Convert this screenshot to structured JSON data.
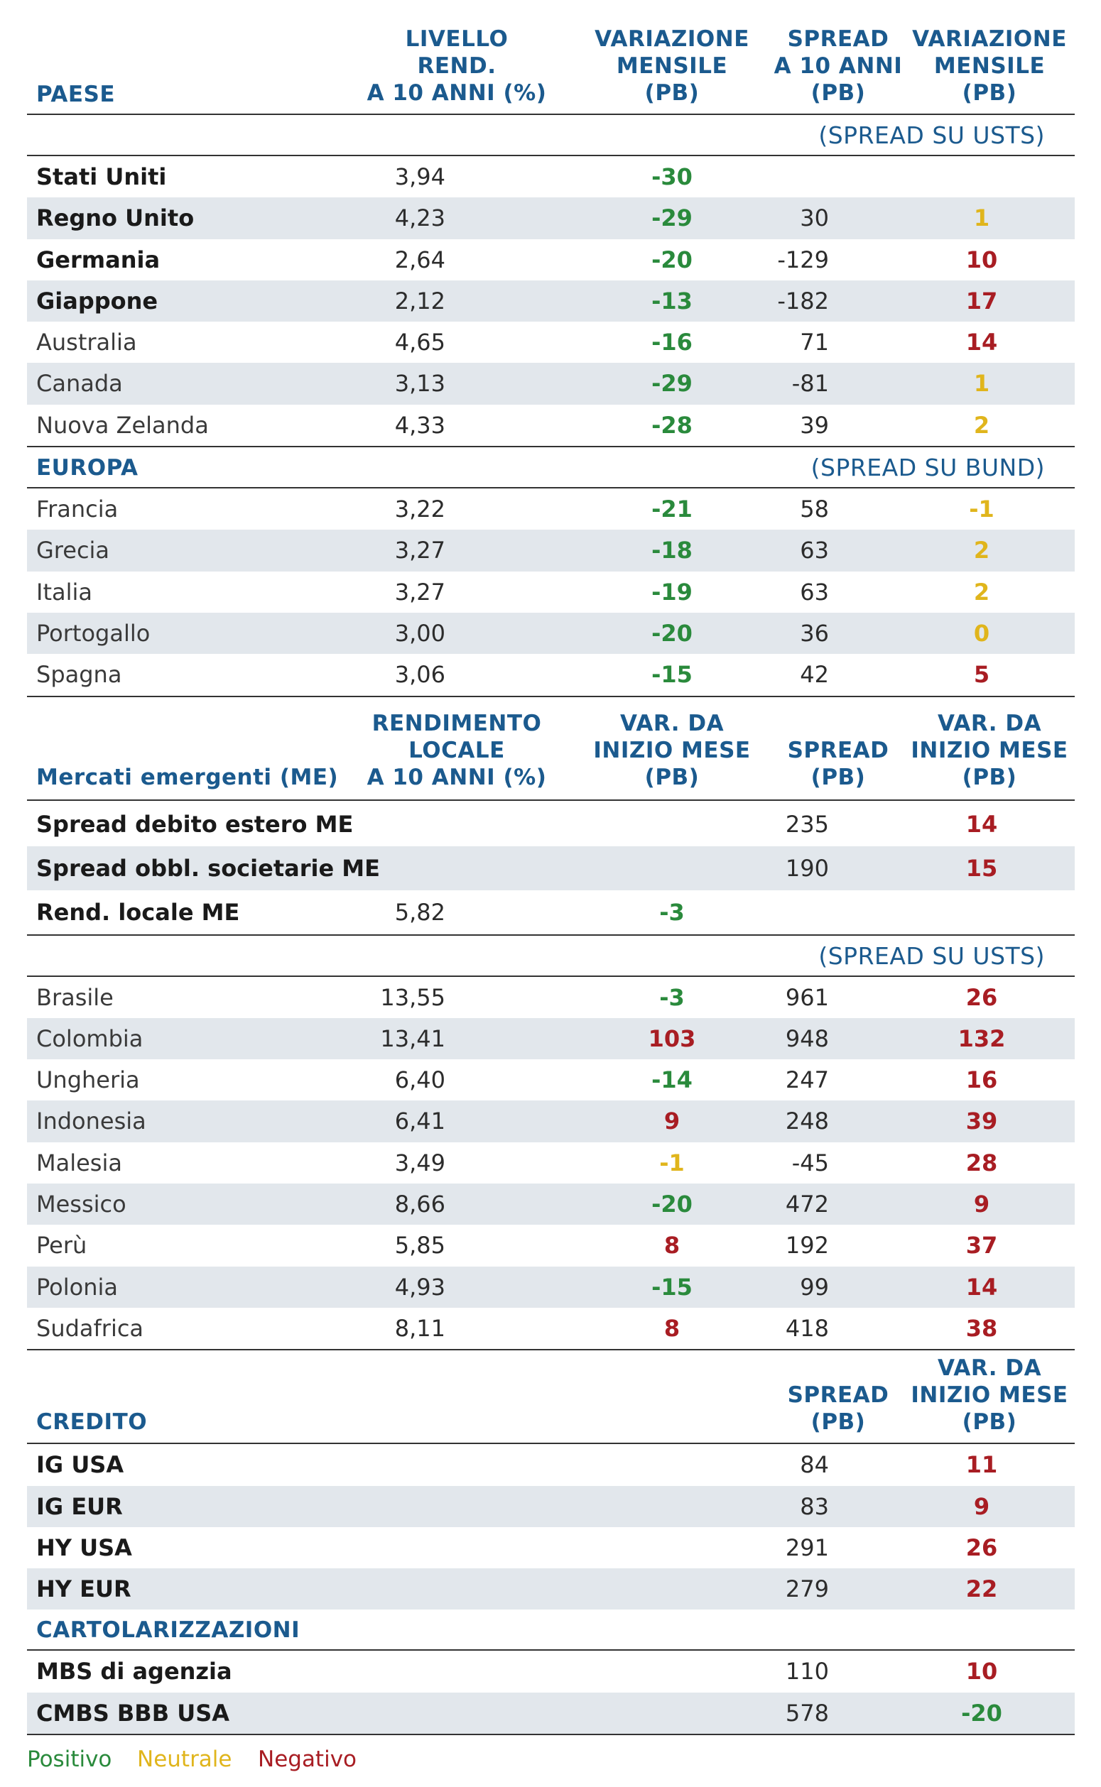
{
  "colors": {
    "header_blue": "#1b5a8e",
    "positive": "#2a8a3c",
    "neutral": "#e0b51c",
    "negative": "#a81d23",
    "row_alt": "#e2e7ec"
  },
  "sec1": {
    "headers": {
      "paese": "PAESE",
      "lvl": [
        "LIVELLO",
        "REND.",
        "A 10 ANNI (%)"
      ],
      "var": [
        "VARIAZIONE",
        "MENSILE",
        "(PB)"
      ],
      "spr": [
        "SPREAD",
        "A 10 ANNI",
        "(PB)"
      ],
      "var2": [
        "VARIAZIONE",
        "MENSILE",
        "(PB)"
      ]
    },
    "note": "(SPREAD SU USTS)",
    "rows": [
      {
        "name": "Stati Uniti",
        "level": "3,94",
        "chg": "-30",
        "spread": "",
        "spr_chg": ""
      },
      {
        "name": "Regno Unito",
        "level": "4,23",
        "chg": "-29",
        "spread": "30",
        "spr_chg": "1"
      },
      {
        "name": "Germania",
        "level": "2,64",
        "chg": "-20",
        "spread": "-129",
        "spr_chg": "10"
      },
      {
        "name": "Giappone",
        "level": "2,12",
        "chg": "-13",
        "spread": "-182",
        "spr_chg": "17"
      },
      {
        "name": "Australia",
        "level": "4,65",
        "chg": "-16",
        "spread": "71",
        "spr_chg": "14"
      },
      {
        "name": "Canada",
        "level": "3,13",
        "chg": "-29",
        "spread": "-81",
        "spr_chg": "1"
      },
      {
        "name": "Nuova Zelanda",
        "level": "4,33",
        "chg": "-28",
        "spread": "39",
        "spr_chg": "2"
      }
    ]
  },
  "europa": {
    "title": "EUROPA",
    "note": "(SPREAD SU BUND)",
    "rows": [
      {
        "name": "Francia",
        "level": "3,22",
        "chg": "-21",
        "spread": "58",
        "spr_chg": "-1"
      },
      {
        "name": "Grecia",
        "level": "3,27",
        "chg": "-18",
        "spread": "63",
        "spr_chg": "2"
      },
      {
        "name": "Italia",
        "level": "3,27",
        "chg": "-19",
        "spread": "63",
        "spr_chg": "2"
      },
      {
        "name": "Portogallo",
        "level": "3,00",
        "chg": "-20",
        "spread": "36",
        "spr_chg": "0"
      },
      {
        "name": "Spagna",
        "level": "3,06",
        "chg": "-15",
        "spread": "42",
        "spr_chg": "5"
      }
    ]
  },
  "em": {
    "headers": {
      "title": "Mercati emergenti (ME)",
      "rend": [
        "RENDIMENTO",
        "LOCALE",
        "A 10 ANNI (%)"
      ],
      "var": [
        "VAR. DA",
        "INIZIO MESE",
        "(PB)"
      ],
      "spr": [
        "SPREAD",
        "(PB)"
      ],
      "var2": [
        "VAR. DA",
        "INIZIO MESE",
        "(PB)"
      ]
    },
    "summary": [
      {
        "name": "Spread debito estero ME",
        "level": "",
        "chg": "",
        "spread": "235",
        "spr_chg": "14"
      },
      {
        "name": "Spread obbl. societarie ME",
        "level": "",
        "chg": "",
        "spread": "190",
        "spr_chg": "15"
      },
      {
        "name": "Rend. locale ME",
        "level": "5,82",
        "chg": "-3",
        "spread": "",
        "spr_chg": ""
      }
    ],
    "note": "(SPREAD SU USTS)",
    "rows": [
      {
        "name": "Brasile",
        "level": "13,55",
        "chg": "-3",
        "spread": "961",
        "spr_chg": "26"
      },
      {
        "name": "Colombia",
        "level": "13,41",
        "chg": "103",
        "spread": "948",
        "spr_chg": "132"
      },
      {
        "name": "Ungheria",
        "level": "6,40",
        "chg": "-14",
        "spread": "247",
        "spr_chg": "16"
      },
      {
        "name": "Indonesia",
        "level": "6,41",
        "chg": "9",
        "spread": "248",
        "spr_chg": "39"
      },
      {
        "name": "Malesia",
        "level": "3,49",
        "chg": "-1",
        "spread": "-45",
        "spr_chg": "28"
      },
      {
        "name": "Messico",
        "level": "8,66",
        "chg": "-20",
        "spread": "472",
        "spr_chg": "9"
      },
      {
        "name": "Perù",
        "level": "5,85",
        "chg": "8",
        "spread": "192",
        "spr_chg": "37"
      },
      {
        "name": "Polonia",
        "level": "4,93",
        "chg": "-15",
        "spread": "99",
        "spr_chg": "14"
      },
      {
        "name": "Sudafrica",
        "level": "8,11",
        "chg": "8",
        "spread": "418",
        "spr_chg": "38"
      }
    ]
  },
  "credito": {
    "headers": {
      "title": "CREDITO",
      "spr": [
        "SPREAD",
        "(PB)"
      ],
      "var2": [
        "VAR. DA",
        "INIZIO MESE",
        "(PB)"
      ]
    },
    "rows": [
      {
        "name": "IG USA",
        "spread": "84",
        "spr_chg": "11"
      },
      {
        "name": "IG EUR",
        "spread": "83",
        "spr_chg": "9"
      },
      {
        "name": "HY USA",
        "spread": "291",
        "spr_chg": "26"
      },
      {
        "name": "HY EUR",
        "spread": "279",
        "spr_chg": "22"
      }
    ]
  },
  "cartolarizzazioni": {
    "title": "CARTOLARIZZAZIONI",
    "rows": [
      {
        "name": "MBS di agenzia",
        "spread": "110",
        "spr_chg": "10"
      },
      {
        "name": "CMBS BBB USA",
        "spread": "578",
        "spr_chg": "-20"
      }
    ]
  },
  "legend": {
    "positive": "Positivo",
    "neutral": "Neutrale",
    "negative": "Negativo"
  }
}
